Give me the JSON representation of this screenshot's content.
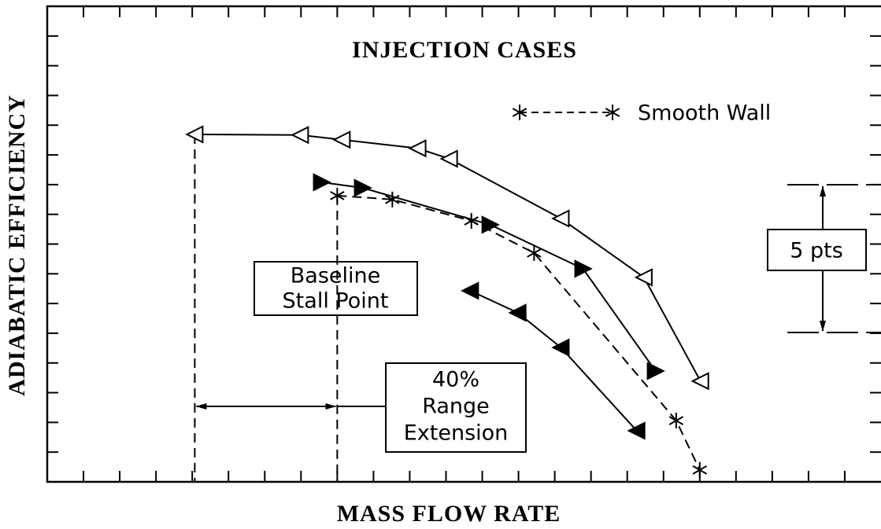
{
  "chart_data": {
    "type": "line",
    "title": "INJECTION CASES",
    "xlabel": "MASS FLOW RATE",
    "ylabel": "ADIABATIC EFFICIENCY",
    "xlim": [
      0,
      23
    ],
    "xticks": [
      1,
      2,
      3,
      4,
      5,
      6,
      7,
      8,
      9,
      10,
      11,
      12,
      13,
      14,
      15,
      16,
      17,
      18,
      19,
      20,
      21,
      22
    ],
    "ylim": [
      0,
      16
    ],
    "yticks": [
      1,
      2,
      3,
      4,
      5,
      6,
      7,
      8,
      9,
      10,
      11,
      12,
      13,
      14,
      15
    ],
    "series": [
      {
        "marker": "open-triangle-left",
        "dash": false,
        "x": [
          4.07,
          6.98,
          8.13,
          10.22,
          11.09,
          14.17,
          16.46,
          18.02
        ],
        "values": [
          11.69,
          11.67,
          11.51,
          11.22,
          10.87,
          8.86,
          6.88,
          3.39
        ]
      },
      {
        "marker": "filled-triangle-right",
        "dash": false,
        "x": [
          7.57,
          8.7,
          12.22,
          14.78,
          16.78
        ],
        "values": [
          10.08,
          9.89,
          8.65,
          7.17,
          3.73
        ]
      },
      {
        "name": "Smooth Wall",
        "marker": "asterisk",
        "dash": true,
        "x": [
          8.0,
          9.52,
          11.7,
          13.43,
          17.35,
          18.0
        ],
        "values": [
          9.63,
          9.5,
          8.78,
          7.7,
          2.06,
          0.4
        ]
      },
      {
        "marker": "filled-triangle-left",
        "dash": false,
        "x": [
          11.67,
          12.98,
          14.17,
          16.26
        ],
        "values": [
          6.43,
          5.69,
          4.52,
          1.72
        ]
      }
    ],
    "annotations": {
      "stall": [
        "Baseline",
        "Stall Point"
      ],
      "range": [
        "40%",
        "Range",
        "Extension"
      ],
      "scale": "5 pts"
    }
  }
}
